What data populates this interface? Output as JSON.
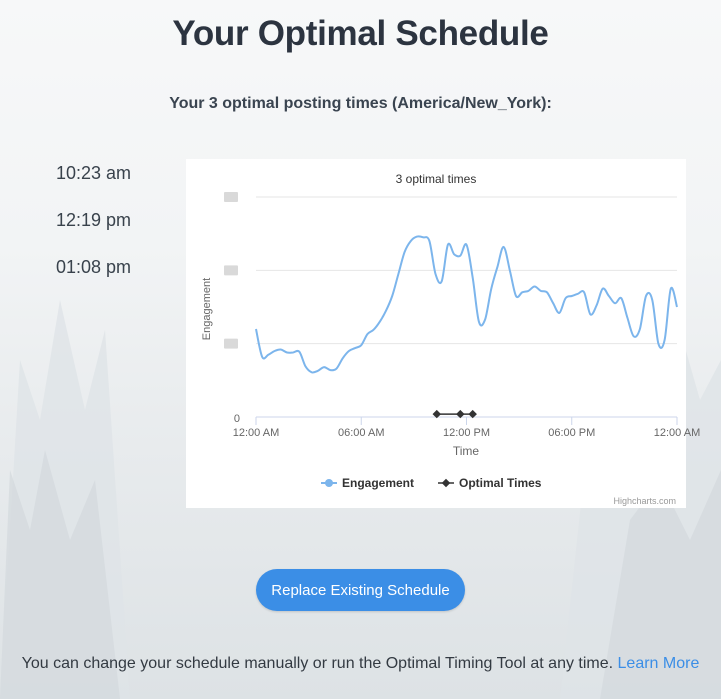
{
  "page": {
    "title": "Your Optimal Schedule",
    "subtitle": "Your 3 optimal posting times (America/New_York):"
  },
  "times": [
    "10:23 am",
    "12:19 pm",
    "01:08 pm"
  ],
  "chart_data": {
    "type": "line",
    "title": "3 optimal times",
    "ylabel": "Engagement",
    "xlabel": "Time",
    "x_tick_labels": [
      "12:00 AM",
      "06:00 AM",
      "12:00 PM",
      "06:00 PM",
      "12:00 AM"
    ],
    "y_tick_labels": [
      "0"
    ],
    "xlim": [
      0,
      34
    ],
    "ylim": [
      0,
      3
    ],
    "grid": true,
    "legend": "bottom-center",
    "credits": "Highcharts.com",
    "series": [
      {
        "name": "Engagement",
        "color": "#7cb5ec",
        "points": [
          [
            0,
            1.2
          ],
          [
            0.5,
            0.82
          ],
          [
            1,
            0.85
          ],
          [
            1.5,
            0.9
          ],
          [
            2,
            0.92
          ],
          [
            2.5,
            0.88
          ],
          [
            3,
            0.88
          ],
          [
            3.5,
            0.89
          ],
          [
            4,
            0.69
          ],
          [
            4.5,
            0.61
          ],
          [
            5,
            0.63
          ],
          [
            5.5,
            0.68
          ],
          [
            6,
            0.64
          ],
          [
            6.5,
            0.66
          ],
          [
            7,
            0.8
          ],
          [
            7.5,
            0.9
          ],
          [
            8,
            0.94
          ],
          [
            8.5,
            0.98
          ],
          [
            9,
            1.13
          ],
          [
            9.5,
            1.19
          ],
          [
            10,
            1.3
          ],
          [
            10.5,
            1.45
          ],
          [
            11,
            1.65
          ],
          [
            11.5,
            1.95
          ],
          [
            12,
            2.25
          ],
          [
            12.5,
            2.4
          ],
          [
            13,
            2.46
          ],
          [
            13.5,
            2.45
          ],
          [
            14,
            2.4
          ],
          [
            14.5,
            1.95
          ],
          [
            15,
            1.85
          ],
          [
            15.5,
            2.35
          ],
          [
            16,
            2.22
          ],
          [
            16.5,
            2.2
          ],
          [
            17,
            2.35
          ],
          [
            17.5,
            1.9
          ],
          [
            18,
            1.3
          ],
          [
            18.5,
            1.33
          ],
          [
            19,
            1.75
          ],
          [
            19.5,
            2.05
          ],
          [
            20,
            2.32
          ],
          [
            20.5,
            2.0
          ],
          [
            21,
            1.65
          ],
          [
            21.5,
            1.7
          ],
          [
            22,
            1.72
          ],
          [
            22.5,
            1.78
          ],
          [
            23,
            1.72
          ],
          [
            23.5,
            1.7
          ],
          [
            24,
            1.55
          ],
          [
            24.5,
            1.42
          ],
          [
            25,
            1.62
          ],
          [
            25.5,
            1.65
          ],
          [
            26,
            1.68
          ],
          [
            26.5,
            1.7
          ],
          [
            27,
            1.4
          ],
          [
            27.5,
            1.52
          ],
          [
            28,
            1.75
          ],
          [
            28.5,
            1.65
          ],
          [
            29,
            1.55
          ],
          [
            29.5,
            1.62
          ],
          [
            30,
            1.35
          ],
          [
            30.5,
            1.1
          ],
          [
            31,
            1.2
          ],
          [
            31.5,
            1.65
          ],
          [
            32,
            1.6
          ],
          [
            32.5,
            1.0
          ],
          [
            33,
            1.05
          ],
          [
            33.5,
            1.75
          ],
          [
            34,
            1.5
          ]
        ]
      },
      {
        "name": "Optimal Times",
        "color": "#333333",
        "points": [
          [
            14.6,
            0.04
          ],
          [
            16.5,
            0.04
          ],
          [
            17.5,
            0.04
          ]
        ]
      }
    ]
  }
}
